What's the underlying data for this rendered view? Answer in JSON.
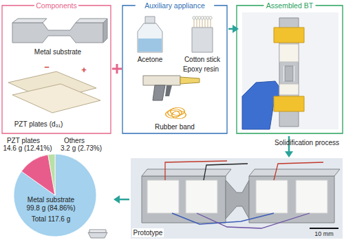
{
  "components": {
    "title": "Components",
    "metal": "Metal substrate",
    "pzt": "PZT plates (d₃₁)",
    "pzt_signs": [
      "−",
      "+"
    ]
  },
  "auxiliary": {
    "title": "Auxiliary appliance",
    "items": [
      "Acetone",
      "Cotton stick",
      "Epoxy resin",
      "Rubber band"
    ]
  },
  "assembled": {
    "title": "Assembled BT"
  },
  "process": "Solidification process",
  "prototype": {
    "label": "Prototype",
    "scale_bar": "10 mm"
  },
  "chart_data": {
    "type": "pie",
    "categories": [
      "Metal substrate",
      "PZT plates",
      "Others"
    ],
    "values": [
      99.8,
      14.6,
      3.2
    ],
    "value_labels": [
      "99.8 g (84.86%)",
      "14.6 g (12.41%)",
      "3.2 g (2.73%)"
    ],
    "colors": [
      "#a3d1ee",
      "#e85c8c",
      "#b9e0a5"
    ],
    "total": "Total 117.6 g"
  }
}
